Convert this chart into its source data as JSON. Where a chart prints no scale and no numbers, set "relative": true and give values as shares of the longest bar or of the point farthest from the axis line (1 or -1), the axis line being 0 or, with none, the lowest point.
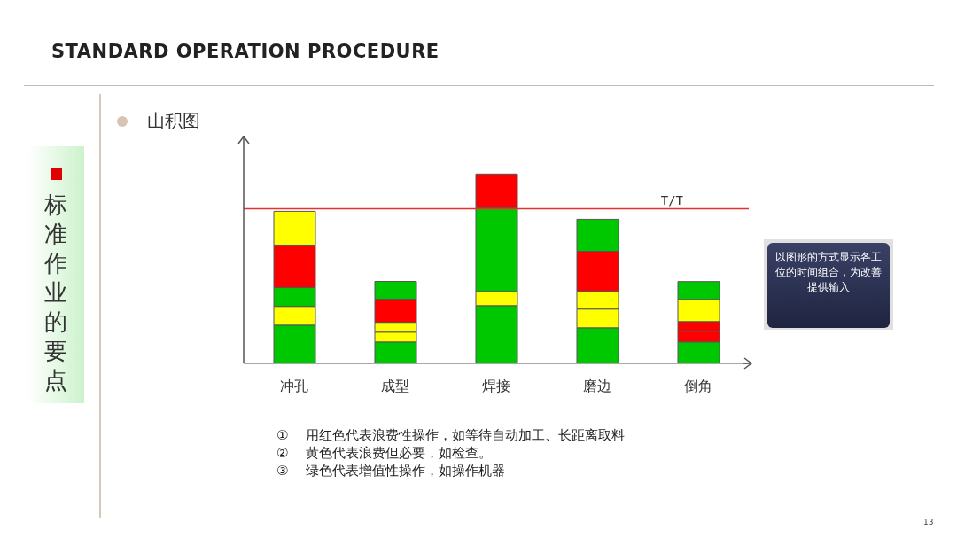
{
  "chart_data": {
    "type": "bar",
    "title": "STANDARD OPERATION PROCEDURE",
    "subtitle": "山积图",
    "categories": [
      "冲孔",
      "成型",
      "焊接",
      "磨边",
      "倒角"
    ],
    "stacked": true,
    "relative": true,
    "series": [
      {
        "colors": [
          "#00c800",
          "#00c800",
          "#00c800",
          "#00c800",
          "#00c800"
        ],
        "values": [
          0.202,
          0.113,
          0.305,
          0.188,
          0.113
        ]
      },
      {
        "colors": [
          "#ffff00",
          "#ffff00",
          "#ffff00",
          "#ffff00",
          "#ff0000"
        ],
        "values": [
          0.099,
          0.052,
          0.075,
          0.099,
          0.056
        ]
      },
      {
        "colors": [
          "#00c800",
          "#ffff00",
          "#00c800",
          "#ffff00",
          "#ff0000"
        ],
        "values": [
          0.099,
          0.052,
          0.441,
          0.094,
          0.052
        ]
      },
      {
        "colors": [
          "#ff0000",
          "#ff0000",
          "#ff0000",
          "#ff0000",
          "#ffff00"
        ],
        "values": [
          0.225,
          0.122,
          0.179,
          0.211,
          0.117
        ]
      },
      {
        "colors": [
          "#ffff00",
          "#00c800",
          "#00c800",
          "#00c800",
          "#00c800"
        ],
        "values": [
          0.178,
          0.094,
          null,
          0.169,
          0.094
        ]
      }
    ],
    "ref_lines": [
      {
        "axis": "y",
        "value": 0.817,
        "label": "T/T",
        "color": "#e83030"
      }
    ],
    "grid": false,
    "legend": false,
    "annotations": [
      "标准作业的要点",
      "①　 用红色代表浪费性操作，如等待自动加工、长距离取料",
      "②　 黄色代表浪费但必要，如检查。",
      "③　 绿色代表增值性操作，如操作机器",
      "以图形的方式显示各工位的时间组合，为改善提供输入",
      "13"
    ]
  }
}
